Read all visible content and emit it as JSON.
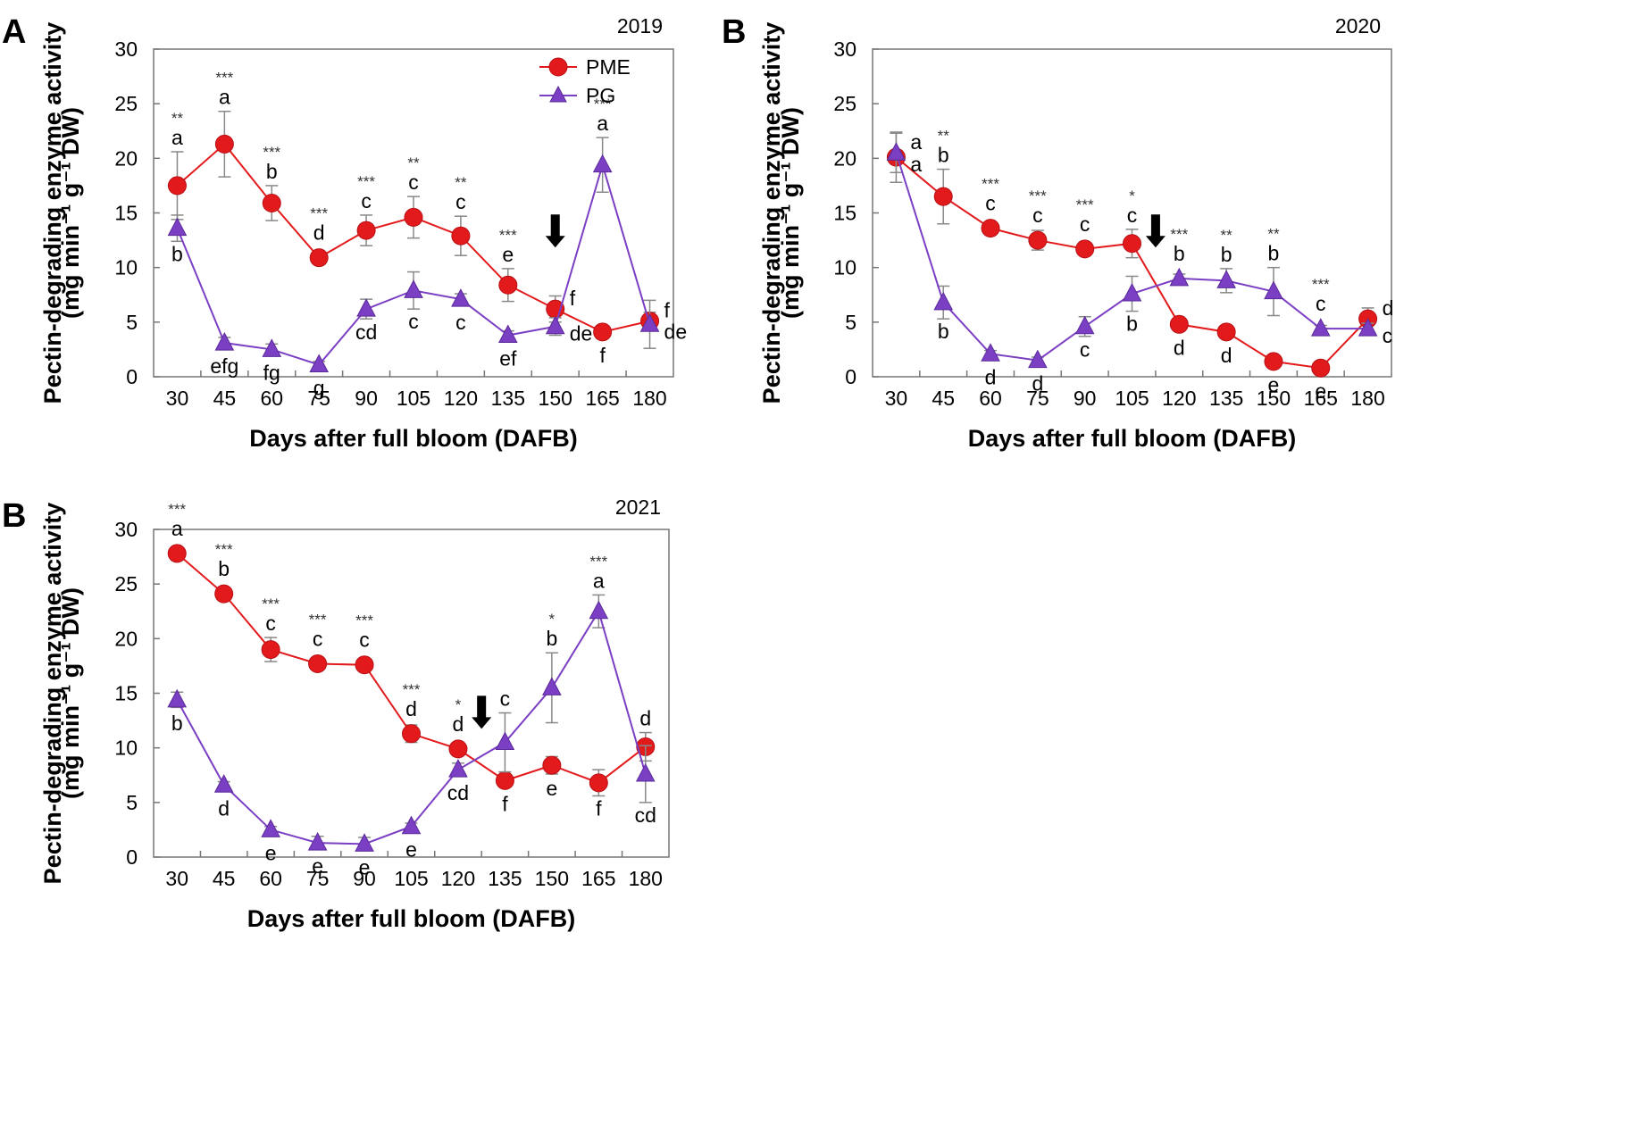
{
  "colors": {
    "PME": "#e31a1c",
    "PG": "#7b3fc4",
    "error_bar": "#888888",
    "frame": "#777777"
  },
  "chart_data": [
    {
      "type": "line",
      "panel_label": "A",
      "year": "2019",
      "xlabel": "Days after full bloom (DAFB)",
      "ylabel_line1": "Pectin-degrading enzyme activity",
      "ylabel_line2": "(mg min⁻¹ g⁻¹ DW)",
      "categories": [
        "30",
        "45",
        "60",
        "75",
        "90",
        "105",
        "120",
        "135",
        "150",
        "165",
        "180"
      ],
      "yticks": [
        "0",
        "5",
        "10",
        "15",
        "20",
        "25",
        "30"
      ],
      "ylim": [
        0,
        30
      ],
      "legend": {
        "position": "top-right",
        "entries": [
          "PME",
          "PG"
        ]
      },
      "arrow_at": "150",
      "series": [
        {
          "name": "PME",
          "marker": "circle",
          "values": [
            17.5,
            21.3,
            15.9,
            10.9,
            13.4,
            14.6,
            12.9,
            8.4,
            6.2,
            4.1,
            5.1
          ],
          "errors": [
            3.1,
            3.0,
            1.6,
            0.5,
            1.4,
            1.9,
            1.8,
            1.5,
            1.2,
            0.6,
            0.8
          ],
          "letters": [
            "a",
            "a",
            "b",
            "d",
            "c",
            "c",
            "c",
            "e",
            "f",
            "f",
            "f"
          ]
        },
        {
          "name": "PG",
          "marker": "triangle",
          "values": [
            13.6,
            3.1,
            2.5,
            1.1,
            6.2,
            7.9,
            7.1,
            3.8,
            4.6,
            19.4,
            4.8
          ],
          "errors": [
            1.2,
            0.5,
            0.5,
            0.3,
            0.9,
            1.7,
            0.5,
            0.4,
            0.8,
            2.5,
            2.2
          ],
          "letters": [
            "b",
            "efg",
            "fg",
            "g",
            "cd",
            "c",
            "c",
            "ef",
            "de",
            "a",
            "de"
          ]
        }
      ],
      "significance": [
        "**",
        "***",
        "***",
        "***",
        "***",
        "**",
        "**",
        "***",
        "",
        "***",
        ""
      ]
    },
    {
      "type": "line",
      "panel_label": "B",
      "year": "2020",
      "xlabel": "Days after full bloom (DAFB)",
      "ylabel_line1": "Pectin-degrading enzyme activity",
      "ylabel_line2": "(mg min⁻¹ g⁻¹ DW)",
      "categories": [
        "30",
        "45",
        "60",
        "75",
        "90",
        "105",
        "120",
        "135",
        "150",
        "165",
        "180"
      ],
      "yticks": [
        "0",
        "5",
        "10",
        "15",
        "20",
        "25",
        "30"
      ],
      "ylim": [
        0,
        30
      ],
      "arrow_at": "112.5",
      "series": [
        {
          "name": "PME",
          "marker": "circle",
          "values": [
            20.1,
            16.5,
            13.6,
            12.5,
            11.7,
            12.2,
            4.8,
            4.1,
            1.4,
            0.8,
            5.3
          ],
          "errors": [
            2.3,
            2.5,
            0.4,
            0.9,
            0.6,
            1.3,
            0.3,
            0.3,
            0.3,
            0.2,
            1.0
          ],
          "letters": [
            "a",
            "b",
            "c",
            "c",
            "c",
            "c",
            "d",
            "d",
            "e",
            "e",
            "d"
          ]
        },
        {
          "name": "PG",
          "marker": "triangle",
          "values": [
            20.5,
            6.8,
            2.1,
            1.5,
            4.6,
            7.6,
            9.0,
            8.8,
            7.8,
            4.4,
            4.4
          ],
          "errors": [
            1.8,
            1.5,
            0.3,
            0.3,
            0.9,
            1.6,
            0.4,
            1.1,
            2.2,
            0.3,
            0.5
          ],
          "letters": [
            "a",
            "b",
            "d",
            "d",
            "c",
            "b",
            "b",
            "b",
            "b",
            "c",
            "c"
          ]
        }
      ],
      "significance": [
        "",
        "**",
        "***",
        "***",
        "***",
        "*",
        "***",
        "**",
        "**",
        "***",
        ""
      ]
    },
    {
      "type": "line",
      "panel_label": "B",
      "year": "2021",
      "xlabel": "Days after full bloom (DAFB)",
      "ylabel_line1": "Pectin-degrading enzyme activity",
      "ylabel_line2": "(mg min⁻¹ g⁻¹ DW)",
      "categories": [
        "30",
        "45",
        "60",
        "75",
        "90",
        "105",
        "120",
        "135",
        "150",
        "165",
        "180"
      ],
      "yticks": [
        "0",
        "5",
        "10",
        "15",
        "20",
        "25",
        "30"
      ],
      "ylim": [
        0,
        30
      ],
      "arrow_at": "127.5",
      "series": [
        {
          "name": "PME",
          "marker": "circle",
          "values": [
            27.8,
            24.1,
            19.0,
            17.7,
            17.6,
            11.3,
            9.9,
            7.0,
            8.4,
            6.8,
            10.1
          ],
          "errors": [
            0.3,
            0.3,
            1.1,
            0.3,
            0.3,
            0.8,
            0.5,
            0.5,
            0.8,
            1.2,
            1.3
          ],
          "letters": [
            "a",
            "b",
            "c",
            "c",
            "c",
            "d",
            "d",
            "f",
            "e",
            "f",
            "d"
          ]
        },
        {
          "name": "PG",
          "marker": "triangle",
          "values": [
            14.4,
            6.6,
            2.5,
            1.3,
            1.2,
            2.8,
            8.0,
            10.5,
            15.5,
            22.5,
            7.6
          ],
          "errors": [
            0.7,
            0.3,
            0.3,
            0.6,
            0.6,
            0.3,
            0.6,
            2.7,
            3.2,
            1.5,
            2.6
          ],
          "letters": [
            "b",
            "d",
            "e",
            "e",
            "e",
            "e",
            "cd",
            "c",
            "b",
            "a",
            "cd"
          ]
        }
      ],
      "significance": [
        "***",
        "***",
        "***",
        "***",
        "***",
        "***",
        "*",
        "",
        "*",
        "***",
        ""
      ]
    }
  ]
}
